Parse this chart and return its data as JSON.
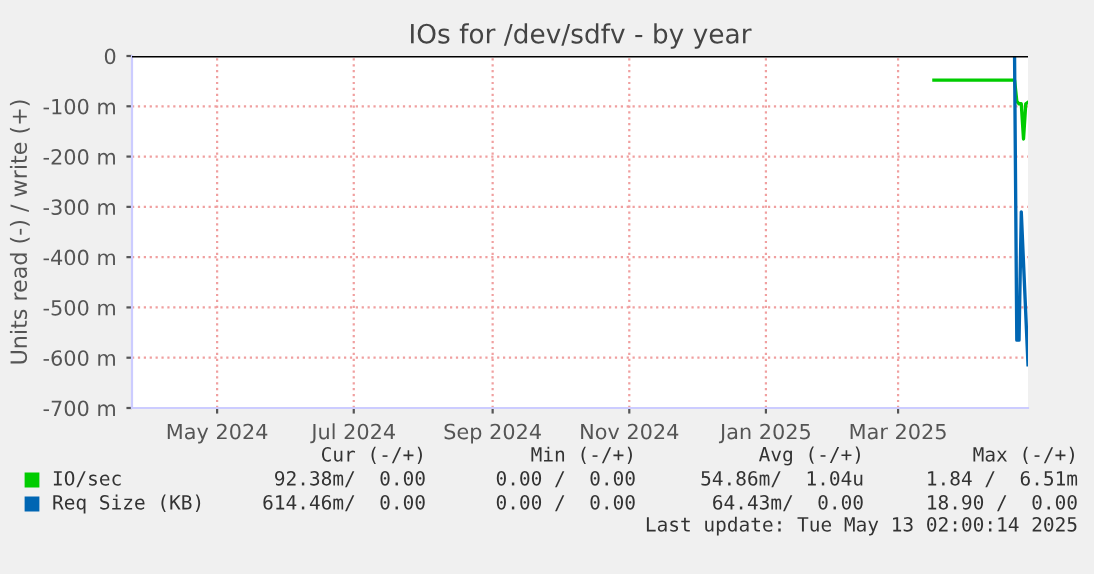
{
  "chart_data": {
    "type": "line",
    "title": "IOs for /dev/sdfv - by year",
    "ylabel": "Units read (-) / write (+)",
    "series": [
      {
        "name": "IO/sec",
        "color": "#00cc00",
        "x": [
          "2025-04-01",
          "2025-05-07",
          "2025-05-08",
          "2025-05-09",
          "2025-05-10",
          "2025-05-11",
          "2025-05-12",
          "2025-05-13"
        ],
        "values": [
          -48,
          -48,
          -90,
          -95,
          -95,
          -165,
          -95,
          -92
        ]
      },
      {
        "name": "Req Size (KB)",
        "color": "#0066b3",
        "x": [
          "2025-05-07",
          "2025-05-08",
          "2025-05-09",
          "2025-05-10",
          "2025-05-13"
        ],
        "values": [
          0,
          -565,
          -565,
          -310,
          -614
        ]
      }
    ],
    "xlim": [
      "2024-04-08",
      "2025-05-13"
    ],
    "xticks": [
      {
        "value": "2024-05-16",
        "label": "May 2024"
      },
      {
        "value": "2024-07-16",
        "label": "Jul 2024"
      },
      {
        "value": "2024-09-16",
        "label": "Sep 2024"
      },
      {
        "value": "2024-11-16",
        "label": "Nov 2024"
      },
      {
        "value": "2025-01-16",
        "label": "Jan 2025"
      },
      {
        "value": "2025-03-16",
        "label": "Mar 2025"
      }
    ],
    "ylim": [
      -700,
      0
    ],
    "yticks": [
      {
        "value": 0,
        "label": "0"
      },
      {
        "value": -100,
        "label": "-100 m"
      },
      {
        "value": -200,
        "label": "-200 m"
      },
      {
        "value": -300,
        "label": "-300 m"
      },
      {
        "value": -400,
        "label": "-400 m"
      },
      {
        "value": -500,
        "label": "-500 m"
      },
      {
        "value": -600,
        "label": "-600 m"
      },
      {
        "value": -700,
        "label": "-700 m"
      }
    ],
    "ref_lines": [
      {
        "axis": "y",
        "value": 0,
        "color": "#000000"
      }
    ],
    "grid": true,
    "legend": "bottom",
    "line_style": "solid",
    "marker": "none",
    "annotations": [
      "Cur (-/+)",
      "Min (-/+)",
      "Avg (-/+)",
      "Max (-/+)",
      "92.38m/  0.00",
      "0.00 /  0.00",
      "54.86m/  1.04u",
      "1.84 /  6.51m",
      "614.46m/  0.00",
      "0.00 /  0.00",
      "64.43m/  0.00",
      "18.90 /  0.00",
      "Last update: Tue May 13 02:00:14 2025"
    ]
  }
}
